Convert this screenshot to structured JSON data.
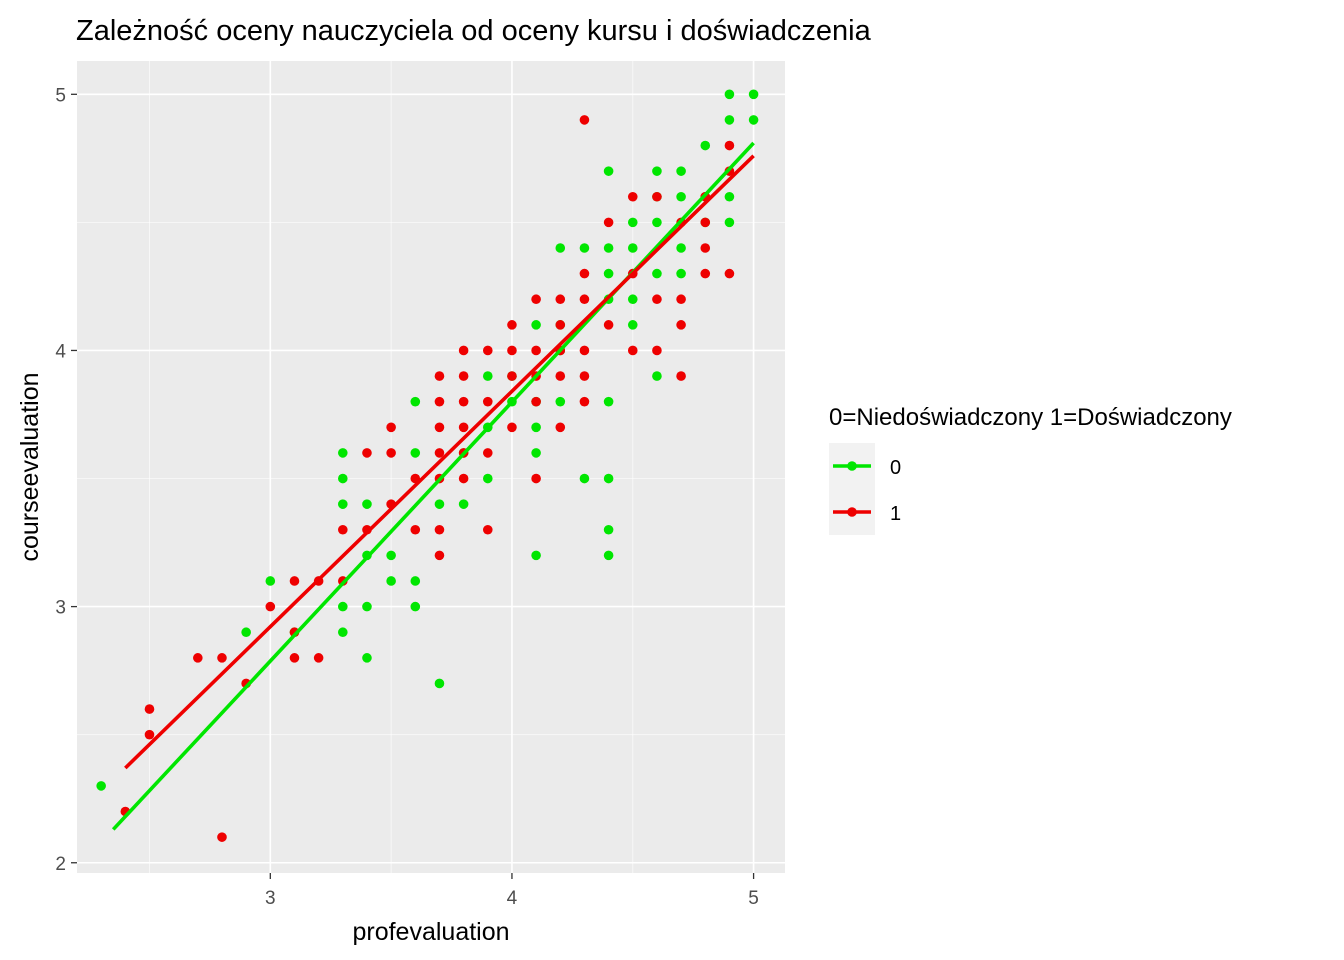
{
  "chart_data": {
    "type": "scatter",
    "title": "Zależność oceny nauczyciela od oceny kursu i doświadczenia",
    "xlabel": "profevaluation",
    "ylabel": "courseevaluation",
    "xlim": [
      2.2,
      5.13
    ],
    "ylim": [
      1.96,
      5.13
    ],
    "xticks": [
      "3",
      "4",
      "5"
    ],
    "yticks": [
      "2",
      "3",
      "4",
      "5"
    ],
    "grid": true,
    "panel_background": "#ebebeb",
    "legend": {
      "title": "0=Niedoświadczony 1=Doświadczony",
      "placement": "right",
      "entries": [
        "0",
        "1"
      ]
    },
    "series": [
      {
        "name": "0",
        "color": "#00e600",
        "trend": {
          "x": [
            2.35,
            5.0
          ],
          "y": [
            2.13,
            4.81
          ]
        },
        "points": [
          [
            2.3,
            2.3
          ],
          [
            2.9,
            2.9
          ],
          [
            3.0,
            3.1
          ],
          [
            3.1,
            2.9
          ],
          [
            3.3,
            3.6
          ],
          [
            3.3,
            3.5
          ],
          [
            3.3,
            3.4
          ],
          [
            3.3,
            3.0
          ],
          [
            3.3,
            2.9
          ],
          [
            3.4,
            3.4
          ],
          [
            3.4,
            3.2
          ],
          [
            3.4,
            3.0
          ],
          [
            3.4,
            2.8
          ],
          [
            3.5,
            3.2
          ],
          [
            3.5,
            3.1
          ],
          [
            3.6,
            3.8
          ],
          [
            3.6,
            3.6
          ],
          [
            3.6,
            3.1
          ],
          [
            3.6,
            3.0
          ],
          [
            3.7,
            3.4
          ],
          [
            3.7,
            2.7
          ],
          [
            3.8,
            3.6
          ],
          [
            3.8,
            3.4
          ],
          [
            3.9,
            3.9
          ],
          [
            3.9,
            3.7
          ],
          [
            3.9,
            3.5
          ],
          [
            4.0,
            3.9
          ],
          [
            4.0,
            3.8
          ],
          [
            4.1,
            4.1
          ],
          [
            4.1,
            3.8
          ],
          [
            4.1,
            3.7
          ],
          [
            4.1,
            3.6
          ],
          [
            4.1,
            3.2
          ],
          [
            4.2,
            4.4
          ],
          [
            4.2,
            4.1
          ],
          [
            4.2,
            4.0
          ],
          [
            4.2,
            3.8
          ],
          [
            4.3,
            4.4
          ],
          [
            4.3,
            3.5
          ],
          [
            4.4,
            4.7
          ],
          [
            4.4,
            4.4
          ],
          [
            4.4,
            4.3
          ],
          [
            4.4,
            4.2
          ],
          [
            4.4,
            3.8
          ],
          [
            4.4,
            3.5
          ],
          [
            4.4,
            3.3
          ],
          [
            4.4,
            3.2
          ],
          [
            4.5,
            4.5
          ],
          [
            4.5,
            4.4
          ],
          [
            4.5,
            4.2
          ],
          [
            4.5,
            4.1
          ],
          [
            4.6,
            4.7
          ],
          [
            4.6,
            4.6
          ],
          [
            4.6,
            4.5
          ],
          [
            4.6,
            4.3
          ],
          [
            4.6,
            3.9
          ],
          [
            4.7,
            4.7
          ],
          [
            4.7,
            4.6
          ],
          [
            4.7,
            4.4
          ],
          [
            4.7,
            4.3
          ],
          [
            4.8,
            4.8
          ],
          [
            4.8,
            4.6
          ],
          [
            4.8,
            4.5
          ],
          [
            4.9,
            5.0
          ],
          [
            4.9,
            4.9
          ],
          [
            4.9,
            4.6
          ],
          [
            4.9,
            4.5
          ],
          [
            5.0,
            5.0
          ],
          [
            5.0,
            4.9
          ]
        ]
      },
      {
        "name": "1",
        "color": "#ee0000",
        "trend": {
          "x": [
            2.4,
            5.0
          ],
          "y": [
            2.37,
            4.76
          ]
        },
        "points": [
          [
            2.4,
            2.2
          ],
          [
            2.5,
            2.6
          ],
          [
            2.5,
            2.5
          ],
          [
            2.7,
            2.8
          ],
          [
            2.8,
            2.8
          ],
          [
            2.8,
            2.1
          ],
          [
            2.9,
            2.7
          ],
          [
            3.0,
            3.0
          ],
          [
            3.1,
            3.1
          ],
          [
            3.1,
            2.9
          ],
          [
            3.1,
            2.8
          ],
          [
            3.2,
            3.1
          ],
          [
            3.2,
            2.8
          ],
          [
            3.3,
            3.3
          ],
          [
            3.3,
            3.1
          ],
          [
            3.4,
            3.6
          ],
          [
            3.4,
            3.3
          ],
          [
            3.5,
            3.7
          ],
          [
            3.5,
            3.6
          ],
          [
            3.5,
            3.4
          ],
          [
            3.6,
            3.5
          ],
          [
            3.6,
            3.3
          ],
          [
            3.7,
            3.9
          ],
          [
            3.7,
            3.8
          ],
          [
            3.7,
            3.7
          ],
          [
            3.7,
            3.6
          ],
          [
            3.7,
            3.5
          ],
          [
            3.7,
            3.3
          ],
          [
            3.7,
            3.2
          ],
          [
            3.8,
            4.0
          ],
          [
            3.8,
            3.9
          ],
          [
            3.8,
            3.8
          ],
          [
            3.8,
            3.7
          ],
          [
            3.8,
            3.6
          ],
          [
            3.8,
            3.5
          ],
          [
            3.9,
            4.0
          ],
          [
            3.9,
            3.8
          ],
          [
            3.9,
            3.6
          ],
          [
            3.9,
            3.3
          ],
          [
            4.0,
            4.1
          ],
          [
            4.0,
            4.0
          ],
          [
            4.0,
            3.9
          ],
          [
            4.0,
            3.7
          ],
          [
            4.1,
            4.2
          ],
          [
            4.1,
            4.0
          ],
          [
            4.1,
            3.9
          ],
          [
            4.1,
            3.8
          ],
          [
            4.1,
            3.5
          ],
          [
            4.2,
            4.2
          ],
          [
            4.2,
            4.1
          ],
          [
            4.2,
            4.0
          ],
          [
            4.2,
            3.9
          ],
          [
            4.2,
            3.7
          ],
          [
            4.3,
            4.9
          ],
          [
            4.3,
            4.3
          ],
          [
            4.3,
            4.2
          ],
          [
            4.3,
            4.0
          ],
          [
            4.3,
            3.9
          ],
          [
            4.3,
            3.8
          ],
          [
            4.4,
            4.5
          ],
          [
            4.4,
            4.1
          ],
          [
            4.5,
            4.6
          ],
          [
            4.5,
            4.3
          ],
          [
            4.5,
            4.0
          ],
          [
            4.6,
            4.6
          ],
          [
            4.6,
            4.2
          ],
          [
            4.6,
            4.0
          ],
          [
            4.7,
            4.5
          ],
          [
            4.7,
            4.2
          ],
          [
            4.7,
            4.1
          ],
          [
            4.7,
            3.9
          ],
          [
            4.8,
            4.6
          ],
          [
            4.8,
            4.5
          ],
          [
            4.8,
            4.4
          ],
          [
            4.8,
            4.3
          ],
          [
            4.9,
            4.8
          ],
          [
            4.9,
            4.7
          ],
          [
            4.9,
            4.3
          ]
        ]
      }
    ]
  }
}
